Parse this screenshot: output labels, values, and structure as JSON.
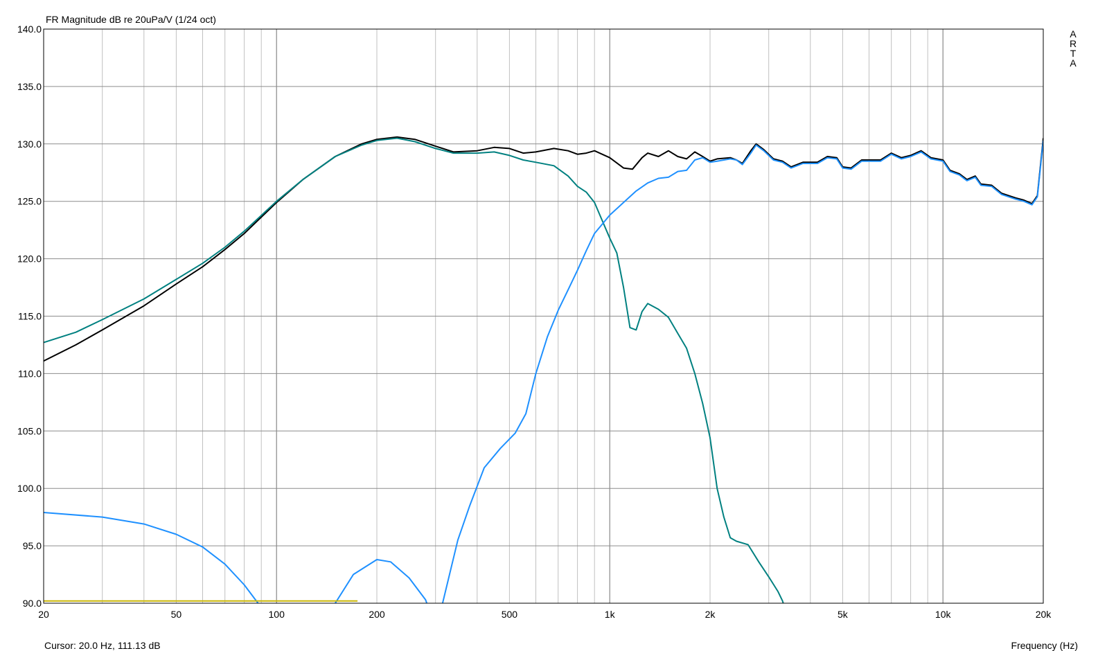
{
  "app": {
    "brand_letters": [
      "A",
      "R",
      "T",
      "A"
    ]
  },
  "status": {
    "cursor": "Cursor: 20.0 Hz, 111.13 dB"
  },
  "chart_data": {
    "type": "line",
    "title": "FR Magnitude dB re 20uPa/V (1/24 oct)",
    "xlabel": "Frequency (Hz)",
    "ylabel": "",
    "xscale": "log",
    "xlim": [
      20,
      20000
    ],
    "ylim": [
      90,
      140
    ],
    "grid": true,
    "x_ticks": [
      {
        "v": 20,
        "label": "20"
      },
      {
        "v": 50,
        "label": "50"
      },
      {
        "v": 100,
        "label": "100"
      },
      {
        "v": 200,
        "label": "200"
      },
      {
        "v": 500,
        "label": "500"
      },
      {
        "v": 1000,
        "label": "1k"
      },
      {
        "v": 2000,
        "label": "2k"
      },
      {
        "v": 5000,
        "label": "5k"
      },
      {
        "v": 10000,
        "label": "10k"
      },
      {
        "v": 20000,
        "label": "20k"
      }
    ],
    "y_ticks": [
      {
        "v": 90,
        "label": "90.0"
      },
      {
        "v": 95,
        "label": "95.0"
      },
      {
        "v": 100,
        "label": "100.0"
      },
      {
        "v": 105,
        "label": "105.0"
      },
      {
        "v": 110,
        "label": "110.0"
      },
      {
        "v": 115,
        "label": "115.0"
      },
      {
        "v": 120,
        "label": "120.0"
      },
      {
        "v": 125,
        "label": "125.0"
      },
      {
        "v": 130,
        "label": "130.0"
      },
      {
        "v": 135,
        "label": "135.0"
      },
      {
        "v": 140,
        "label": "140.0"
      }
    ],
    "series": [
      {
        "color": "#000000",
        "width": 2,
        "points": [
          [
            20,
            111.1
          ],
          [
            25,
            112.5
          ],
          [
            30,
            113.8
          ],
          [
            40,
            115.9
          ],
          [
            50,
            117.8
          ],
          [
            60,
            119.3
          ],
          [
            70,
            120.8
          ],
          [
            80,
            122.2
          ],
          [
            100,
            124.9
          ],
          [
            120,
            126.9
          ],
          [
            150,
            128.9
          ],
          [
            180,
            130.0
          ],
          [
            200,
            130.4
          ],
          [
            230,
            130.6
          ],
          [
            260,
            130.4
          ],
          [
            300,
            129.8
          ],
          [
            340,
            129.3
          ],
          [
            400,
            129.4
          ],
          [
            450,
            129.7
          ],
          [
            500,
            129.6
          ],
          [
            550,
            129.2
          ],
          [
            600,
            129.3
          ],
          [
            680,
            129.6
          ],
          [
            750,
            129.4
          ],
          [
            800,
            129.1
          ],
          [
            850,
            129.2
          ],
          [
            900,
            129.4
          ],
          [
            1000,
            128.8
          ],
          [
            1100,
            127.9
          ],
          [
            1170,
            127.8
          ],
          [
            1250,
            128.8
          ],
          [
            1300,
            129.2
          ],
          [
            1400,
            128.9
          ],
          [
            1500,
            129.4
          ],
          [
            1600,
            128.9
          ],
          [
            1700,
            128.7
          ],
          [
            1800,
            129.3
          ],
          [
            1900,
            128.9
          ],
          [
            2000,
            128.5
          ],
          [
            2100,
            128.7
          ],
          [
            2300,
            128.8
          ],
          [
            2400,
            128.6
          ],
          [
            2500,
            128.3
          ],
          [
            2650,
            129.4
          ],
          [
            2750,
            130.0
          ],
          [
            2900,
            129.5
          ],
          [
            3100,
            128.7
          ],
          [
            3300,
            128.5
          ],
          [
            3500,
            128.0
          ],
          [
            3800,
            128.4
          ],
          [
            4200,
            128.4
          ],
          [
            4500,
            128.9
          ],
          [
            4800,
            128.8
          ],
          [
            5000,
            128.0
          ],
          [
            5300,
            127.9
          ],
          [
            5700,
            128.6
          ],
          [
            6500,
            128.6
          ],
          [
            7000,
            129.2
          ],
          [
            7500,
            128.8
          ],
          [
            8000,
            129.0
          ],
          [
            8600,
            129.4
          ],
          [
            9200,
            128.8
          ],
          [
            10000,
            128.6
          ],
          [
            10500,
            127.7
          ],
          [
            11200,
            127.4
          ],
          [
            11800,
            126.9
          ],
          [
            12500,
            127.2
          ],
          [
            13000,
            126.5
          ],
          [
            14000,
            126.4
          ],
          [
            15000,
            125.7
          ],
          [
            16500,
            125.3
          ],
          [
            17500,
            125.1
          ],
          [
            18500,
            124.8
          ],
          [
            19200,
            125.5
          ],
          [
            20000,
            130.5
          ]
        ]
      },
      {
        "color": "#008080",
        "width": 2,
        "points": [
          [
            20,
            112.7
          ],
          [
            25,
            113.6
          ],
          [
            30,
            114.7
          ],
          [
            40,
            116.5
          ],
          [
            50,
            118.2
          ],
          [
            60,
            119.6
          ],
          [
            70,
            121.0
          ],
          [
            80,
            122.4
          ],
          [
            100,
            125.0
          ],
          [
            120,
            126.9
          ],
          [
            150,
            128.9
          ],
          [
            180,
            129.9
          ],
          [
            200,
            130.3
          ],
          [
            230,
            130.5
          ],
          [
            260,
            130.2
          ],
          [
            300,
            129.6
          ],
          [
            340,
            129.2
          ],
          [
            400,
            129.2
          ],
          [
            450,
            129.3
          ],
          [
            500,
            129.0
          ],
          [
            550,
            128.6
          ],
          [
            600,
            128.4
          ],
          [
            680,
            128.1
          ],
          [
            750,
            127.2
          ],
          [
            800,
            126.3
          ],
          [
            850,
            125.8
          ],
          [
            900,
            124.9
          ],
          [
            950,
            123.3
          ],
          [
            1000,
            121.8
          ],
          [
            1050,
            120.5
          ],
          [
            1100,
            117.5
          ],
          [
            1150,
            114.0
          ],
          [
            1200,
            113.8
          ],
          [
            1250,
            115.4
          ],
          [
            1300,
            116.1
          ],
          [
            1400,
            115.6
          ],
          [
            1500,
            114.9
          ],
          [
            1600,
            113.5
          ],
          [
            1700,
            112.2
          ],
          [
            1800,
            110.0
          ],
          [
            1900,
            107.4
          ],
          [
            2000,
            104.4
          ],
          [
            2100,
            100.0
          ],
          [
            2200,
            97.5
          ],
          [
            2300,
            95.7
          ],
          [
            2400,
            95.4
          ],
          [
            2600,
            95.1
          ],
          [
            2800,
            93.6
          ],
          [
            3000,
            92.3
          ],
          [
            3200,
            91.0
          ],
          [
            3300,
            90.2
          ],
          [
            3350,
            89.6
          ]
        ]
      },
      {
        "color": "#1E90FF",
        "width": 2,
        "points": [
          [
            20,
            97.9
          ],
          [
            30,
            97.5
          ],
          [
            40,
            96.9
          ],
          [
            50,
            96.0
          ],
          [
            60,
            94.9
          ],
          [
            70,
            93.4
          ],
          [
            80,
            91.6
          ],
          [
            88,
            90.0
          ],
          [
            90,
            89.6
          ]
        ]
      },
      {
        "color": "#1E90FF",
        "width": 2,
        "points": [
          [
            148,
            89.8
          ],
          [
            150,
            90.0
          ],
          [
            170,
            92.5
          ],
          [
            200,
            93.8
          ],
          [
            220,
            93.6
          ],
          [
            250,
            92.2
          ],
          [
            280,
            90.3
          ],
          [
            284,
            89.8
          ]
        ]
      },
      {
        "color": "#1E90FF",
        "width": 2,
        "points": [
          [
            312,
            89.8
          ],
          [
            315,
            90.0
          ],
          [
            350,
            95.5
          ],
          [
            380,
            98.5
          ],
          [
            420,
            101.8
          ],
          [
            470,
            103.5
          ],
          [
            520,
            104.8
          ],
          [
            560,
            106.5
          ],
          [
            600,
            110.0
          ],
          [
            650,
            113.2
          ],
          [
            700,
            115.5
          ],
          [
            750,
            117.3
          ],
          [
            800,
            119.0
          ],
          [
            850,
            120.7
          ],
          [
            900,
            122.2
          ],
          [
            1000,
            123.8
          ],
          [
            1100,
            124.9
          ],
          [
            1200,
            125.9
          ],
          [
            1300,
            126.6
          ],
          [
            1400,
            127.0
          ],
          [
            1500,
            127.1
          ],
          [
            1600,
            127.6
          ],
          [
            1700,
            127.7
          ],
          [
            1800,
            128.6
          ],
          [
            1900,
            128.8
          ],
          [
            2000,
            128.4
          ],
          [
            2100,
            128.5
          ],
          [
            2300,
            128.7
          ],
          [
            2400,
            128.6
          ],
          [
            2500,
            128.2
          ],
          [
            2650,
            129.2
          ],
          [
            2750,
            129.9
          ],
          [
            2900,
            129.4
          ],
          [
            3100,
            128.6
          ],
          [
            3300,
            128.4
          ],
          [
            3500,
            127.9
          ],
          [
            3800,
            128.3
          ],
          [
            4200,
            128.3
          ],
          [
            4500,
            128.8
          ],
          [
            4800,
            128.7
          ],
          [
            5000,
            127.9
          ],
          [
            5300,
            127.8
          ],
          [
            5700,
            128.5
          ],
          [
            6500,
            128.5
          ],
          [
            7000,
            129.1
          ],
          [
            7500,
            128.7
          ],
          [
            8000,
            128.9
          ],
          [
            8600,
            129.3
          ],
          [
            9200,
            128.7
          ],
          [
            10000,
            128.5
          ],
          [
            10500,
            127.6
          ],
          [
            11200,
            127.3
          ],
          [
            11800,
            126.8
          ],
          [
            12500,
            127.1
          ],
          [
            13000,
            126.4
          ],
          [
            14000,
            126.3
          ],
          [
            15000,
            125.6
          ],
          [
            16500,
            125.2
          ],
          [
            17500,
            125.0
          ],
          [
            18500,
            124.7
          ],
          [
            19200,
            125.4
          ],
          [
            20000,
            130.3
          ]
        ]
      },
      {
        "color": "#C8B400",
        "width": 2,
        "points": [
          [
            20,
            90.2
          ],
          [
            175,
            90.2
          ]
        ]
      }
    ]
  }
}
